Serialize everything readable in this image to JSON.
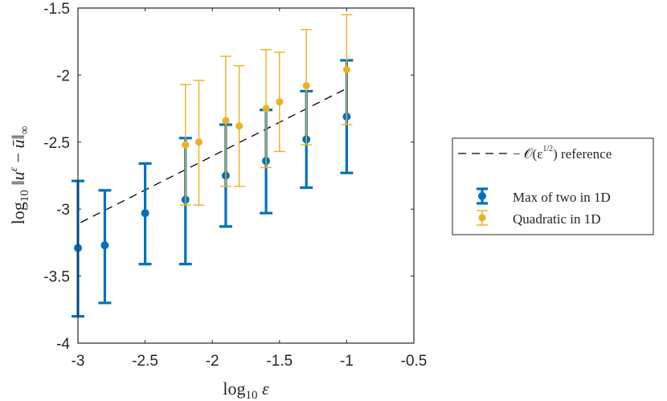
{
  "chart_data": {
    "type": "scatter",
    "title": "",
    "xlabel": "log₁₀ ε",
    "ylabel": "log₁₀ ‖uᵋ − ū‖∞",
    "xlim": [
      -3,
      -0.5
    ],
    "ylim": [
      -4,
      -1.5
    ],
    "xticks": [
      -3,
      -2.5,
      -2,
      -1.5,
      -1,
      -0.5
    ],
    "xtick_labels": [
      "-3",
      "-2.5",
      "-2",
      "-1.5",
      "-1",
      "-0.5"
    ],
    "yticks": [
      -4,
      -3.5,
      -3,
      -2.5,
      -2,
      -1.5
    ],
    "ytick_labels": [
      "-4",
      "-3.5",
      "-3",
      "-2.5",
      "-2",
      "-1.5"
    ],
    "grid": false,
    "legend_position": "outside-right",
    "reference": {
      "name": "O(ε^(1/2)) reference",
      "label_main": "− 𝒪(ε",
      "label_exp": "1/2",
      "label_tail": ") reference",
      "color": "#000000",
      "style": "dashed",
      "x": [
        -2.98,
        -1.02
      ],
      "y": [
        -3.1,
        -2.11
      ]
    },
    "series": [
      {
        "name": "Max of two in 1D",
        "color": "#0072BD",
        "style": "thick errorbar",
        "x": [
          -3.0,
          -2.8,
          -2.5,
          -2.2,
          -1.9,
          -1.6,
          -1.3,
          -1.0
        ],
        "y": [
          -3.29,
          -3.27,
          -3.03,
          -2.93,
          -2.75,
          -2.64,
          -2.48,
          -2.31
        ],
        "lower": [
          -3.8,
          -3.7,
          -3.41,
          -3.41,
          -3.13,
          -3.03,
          -2.84,
          -2.73
        ],
        "upper": [
          -2.79,
          -2.86,
          -2.66,
          -2.47,
          -2.37,
          -2.26,
          -2.12,
          -1.89
        ]
      },
      {
        "name": "Quadratic in 1D",
        "color": "#EDB120",
        "style": "thin errorbar",
        "x": [
          -2.2,
          -2.1,
          -1.9,
          -1.8,
          -1.6,
          -1.5,
          -1.3,
          -1.0
        ],
        "y": [
          -2.52,
          -2.5,
          -2.34,
          -2.38,
          -2.25,
          -2.2,
          -2.08,
          -1.96
        ],
        "lower": [
          -2.97,
          -2.97,
          -2.83,
          -2.83,
          -2.69,
          -2.57,
          -2.52,
          -2.37
        ],
        "upper": [
          -2.07,
          -2.04,
          -1.86,
          -1.93,
          -1.81,
          -1.83,
          -1.66,
          -1.55
        ]
      }
    ]
  }
}
